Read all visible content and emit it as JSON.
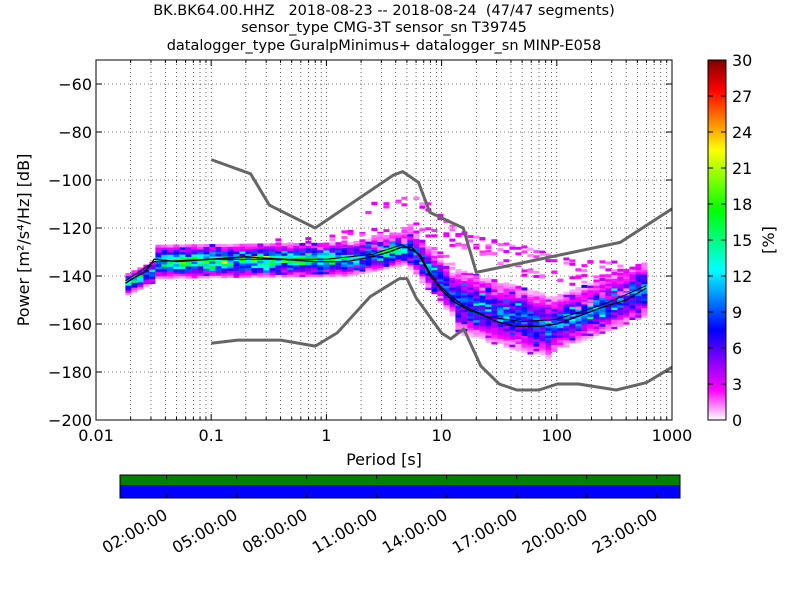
{
  "chart_data": {
    "type": "heatmap",
    "title_lines": [
      "BK.BK64.00.HHZ   2018-08-23 -- 2018-08-24  (47/47 segments)",
      "sensor_type CMG-3T sensor_sn T39745",
      "datalogger_type GuralpMinimus+ datalogger_sn MINP-E058"
    ],
    "xlabel": "Period [s]",
    "ylabel": "Power [m²/s⁴/Hz] [dB]",
    "x_scale": "log",
    "xlim": [
      0.01,
      1000
    ],
    "ylim": [
      -200,
      -50
    ],
    "x_ticks": [
      {
        "v": 0.01,
        "label": "0.01"
      },
      {
        "v": 0.1,
        "label": "0.1"
      },
      {
        "v": 1,
        "label": "1"
      },
      {
        "v": 10,
        "label": "10"
      },
      {
        "v": 100,
        "label": "100"
      },
      {
        "v": 1000,
        "label": "1000"
      }
    ],
    "y_ticks": [
      -60,
      -80,
      -100,
      -120,
      -140,
      -160,
      -180,
      -200
    ],
    "grid": true,
    "colorbar": {
      "label": "[%]",
      "range": [
        0,
        30
      ],
      "ticks": [
        0,
        3,
        6,
        9,
        12,
        15,
        18,
        21,
        24,
        27,
        30
      ],
      "colors": [
        "#ffffff",
        "#ff00ff",
        "#8000ff",
        "#0000ff",
        "#0080ff",
        "#00ffff",
        "#00ff80",
        "#00ff00",
        "#80ff00",
        "#ffff00",
        "#ff8000",
        "#ff0000",
        "#800000"
      ]
    },
    "noise_models": [
      {
        "name": "NHNM",
        "points": [
          [
            0.1,
            -91.5
          ],
          [
            0.22,
            -97.4
          ],
          [
            0.32,
            -110.5
          ],
          [
            0.8,
            -120
          ],
          [
            3.8,
            -98
          ],
          [
            4.6,
            -96.5
          ],
          [
            6.3,
            -101
          ],
          [
            7.9,
            -113.5
          ],
          [
            15.4,
            -120
          ],
          [
            20,
            -138.5
          ],
          [
            354.8,
            -126
          ],
          [
            1000,
            -112
          ]
        ]
      },
      {
        "name": "NLNM",
        "points": [
          [
            0.1,
            -168
          ],
          [
            0.17,
            -166.7
          ],
          [
            0.4,
            -166.7
          ],
          [
            0.8,
            -169.2
          ],
          [
            1.24,
            -163.7
          ],
          [
            2.4,
            -148.6
          ],
          [
            4.3,
            -141.1
          ],
          [
            5,
            -141.1
          ],
          [
            6,
            -149
          ],
          [
            10,
            -163.8
          ],
          [
            12,
            -166.2
          ],
          [
            15.6,
            -162.1
          ],
          [
            21.9,
            -177.5
          ],
          [
            31.6,
            -185
          ],
          [
            45,
            -187.5
          ],
          [
            70,
            -187.5
          ],
          [
            101,
            -185
          ],
          [
            154,
            -185
          ],
          [
            328,
            -187.5
          ],
          [
            600,
            -184.4
          ],
          [
            1000,
            -178
          ]
        ]
      }
    ],
    "mode_curve": [
      [
        0.018,
        -143
      ],
      [
        0.021,
        -141
      ],
      [
        0.027,
        -138
      ],
      [
        0.032,
        -133
      ],
      [
        0.05,
        -134
      ],
      [
        0.1,
        -133
      ],
      [
        0.2,
        -132
      ],
      [
        0.4,
        -133
      ],
      [
        0.8,
        -134
      ],
      [
        1.5,
        -134
      ],
      [
        2.5,
        -132
      ],
      [
        3.5,
        -130
      ],
      [
        4.5,
        -128
      ],
      [
        5.5,
        -128
      ],
      [
        6.5,
        -132
      ],
      [
        8,
        -140
      ],
      [
        10,
        -146
      ],
      [
        13,
        -151
      ],
      [
        17,
        -154
      ],
      [
        22,
        -156
      ],
      [
        30,
        -159
      ],
      [
        45,
        -161
      ],
      [
        70,
        -161
      ],
      [
        100,
        -160
      ],
      [
        150,
        -157
      ],
      [
        250,
        -153
      ],
      [
        400,
        -150
      ],
      [
        600,
        -145
      ]
    ],
    "mean_curve": [
      [
        0.018,
        -142
      ],
      [
        0.032,
        -134
      ],
      [
        0.1,
        -133
      ],
      [
        0.4,
        -133
      ],
      [
        1,
        -133
      ],
      [
        2.5,
        -131
      ],
      [
        4.5,
        -127
      ],
      [
        6.5,
        -131
      ],
      [
        8,
        -139
      ],
      [
        10,
        -145
      ],
      [
        15,
        -152
      ],
      [
        25,
        -157
      ],
      [
        50,
        -159
      ],
      [
        100,
        -158
      ],
      [
        250,
        -152
      ],
      [
        600,
        -144
      ]
    ],
    "psd_density_bands": [
      {
        "x_range": [
          0.018,
          0.03
        ],
        "center": [
          -143,
          -138
        ],
        "spread": 2,
        "level": 12
      },
      {
        "x_range": [
          0.03,
          1.5
        ],
        "center": [
          -134,
          -133
        ],
        "spread": 3,
        "level": 14
      },
      {
        "x_range": [
          1.5,
          5
        ],
        "center": [
          -133,
          -128
        ],
        "spread": 3,
        "level": 12
      },
      {
        "x_range": [
          5,
          12
        ],
        "center": [
          -128,
          -148
        ],
        "spread": 4,
        "level": 8
      },
      {
        "x_range": [
          12,
          80
        ],
        "center": [
          -150,
          -161
        ],
        "spread": 6,
        "level": 8
      },
      {
        "x_range": [
          80,
          600
        ],
        "center": [
          -161,
          -145
        ],
        "spread": 5,
        "level": 9
      }
    ],
    "secondary_curves": [
      {
        "points": [
          [
            2,
            -112
          ],
          [
            4,
            -110
          ],
          [
            6,
            -108
          ],
          [
            10,
            -118
          ],
          [
            20,
            -126
          ],
          [
            60,
            -130
          ],
          [
            150,
            -136
          ],
          [
            400,
            -136
          ],
          [
            600,
            -136
          ]
        ]
      },
      {
        "points": [
          [
            1,
            -124
          ],
          [
            3,
            -122
          ],
          [
            6,
            -120
          ],
          [
            10,
            -124
          ],
          [
            20,
            -130
          ],
          [
            50,
            -138
          ],
          [
            150,
            -142
          ],
          [
            400,
            -140
          ]
        ]
      },
      {
        "points": [
          [
            0.3,
            -125
          ],
          [
            1,
            -127
          ],
          [
            3,
            -127
          ],
          [
            6,
            -123
          ],
          [
            12,
            -136
          ],
          [
            25,
            -146
          ],
          [
            60,
            -150
          ],
          [
            150,
            -152
          ],
          [
            400,
            -146
          ]
        ]
      }
    ],
    "timeline": {
      "tick_labels": [
        "02:00:00",
        "05:00:00",
        "08:00:00",
        "11:00:00",
        "14:00:00",
        "17:00:00",
        "20:00:00",
        "23:00:00"
      ],
      "hours": [
        2,
        5,
        8,
        11,
        14,
        17,
        20,
        23
      ],
      "span_hours": [
        0,
        24
      ],
      "coverage_color": "#008000",
      "data_color": "#0000ff"
    }
  }
}
